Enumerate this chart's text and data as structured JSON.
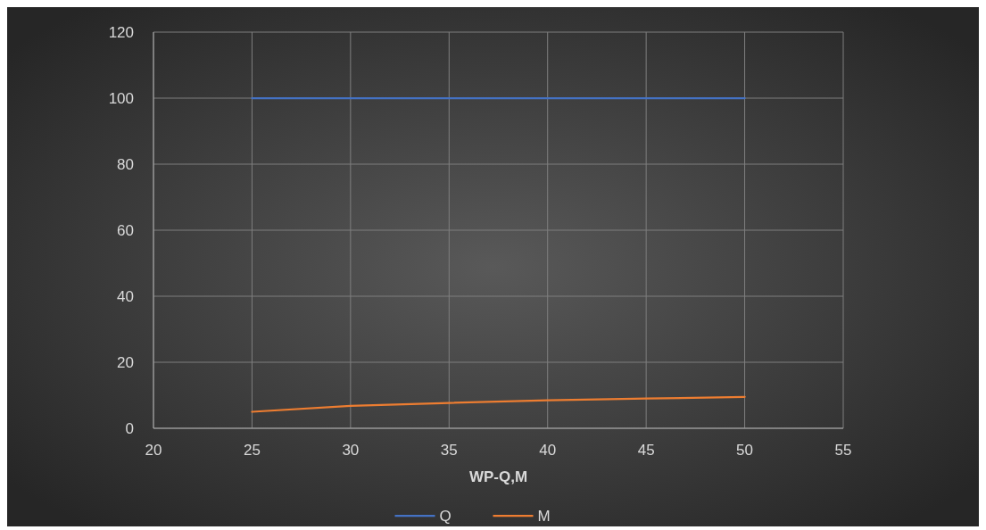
{
  "chart_data": {
    "type": "line",
    "xlabel": "WP-Q,M",
    "x": [
      25,
      30,
      35,
      40,
      45,
      50
    ],
    "series": [
      {
        "name": "Q",
        "color": "#4472c4",
        "values": [
          100,
          100,
          100,
          100,
          100,
          100
        ]
      },
      {
        "name": "M",
        "color": "#ed7d31",
        "values": [
          5,
          6.8,
          7.7,
          8.5,
          9,
          9.5
        ]
      }
    ],
    "xlim": [
      20,
      55
    ],
    "xticks": [
      20,
      25,
      30,
      35,
      40,
      45,
      50,
      55
    ],
    "ylim": [
      0,
      120
    ],
    "yticks": [
      0,
      20,
      40,
      60,
      80,
      100,
      120
    ],
    "grid": true,
    "legend": "bottom",
    "marker": "none",
    "line_style": "solid"
  }
}
